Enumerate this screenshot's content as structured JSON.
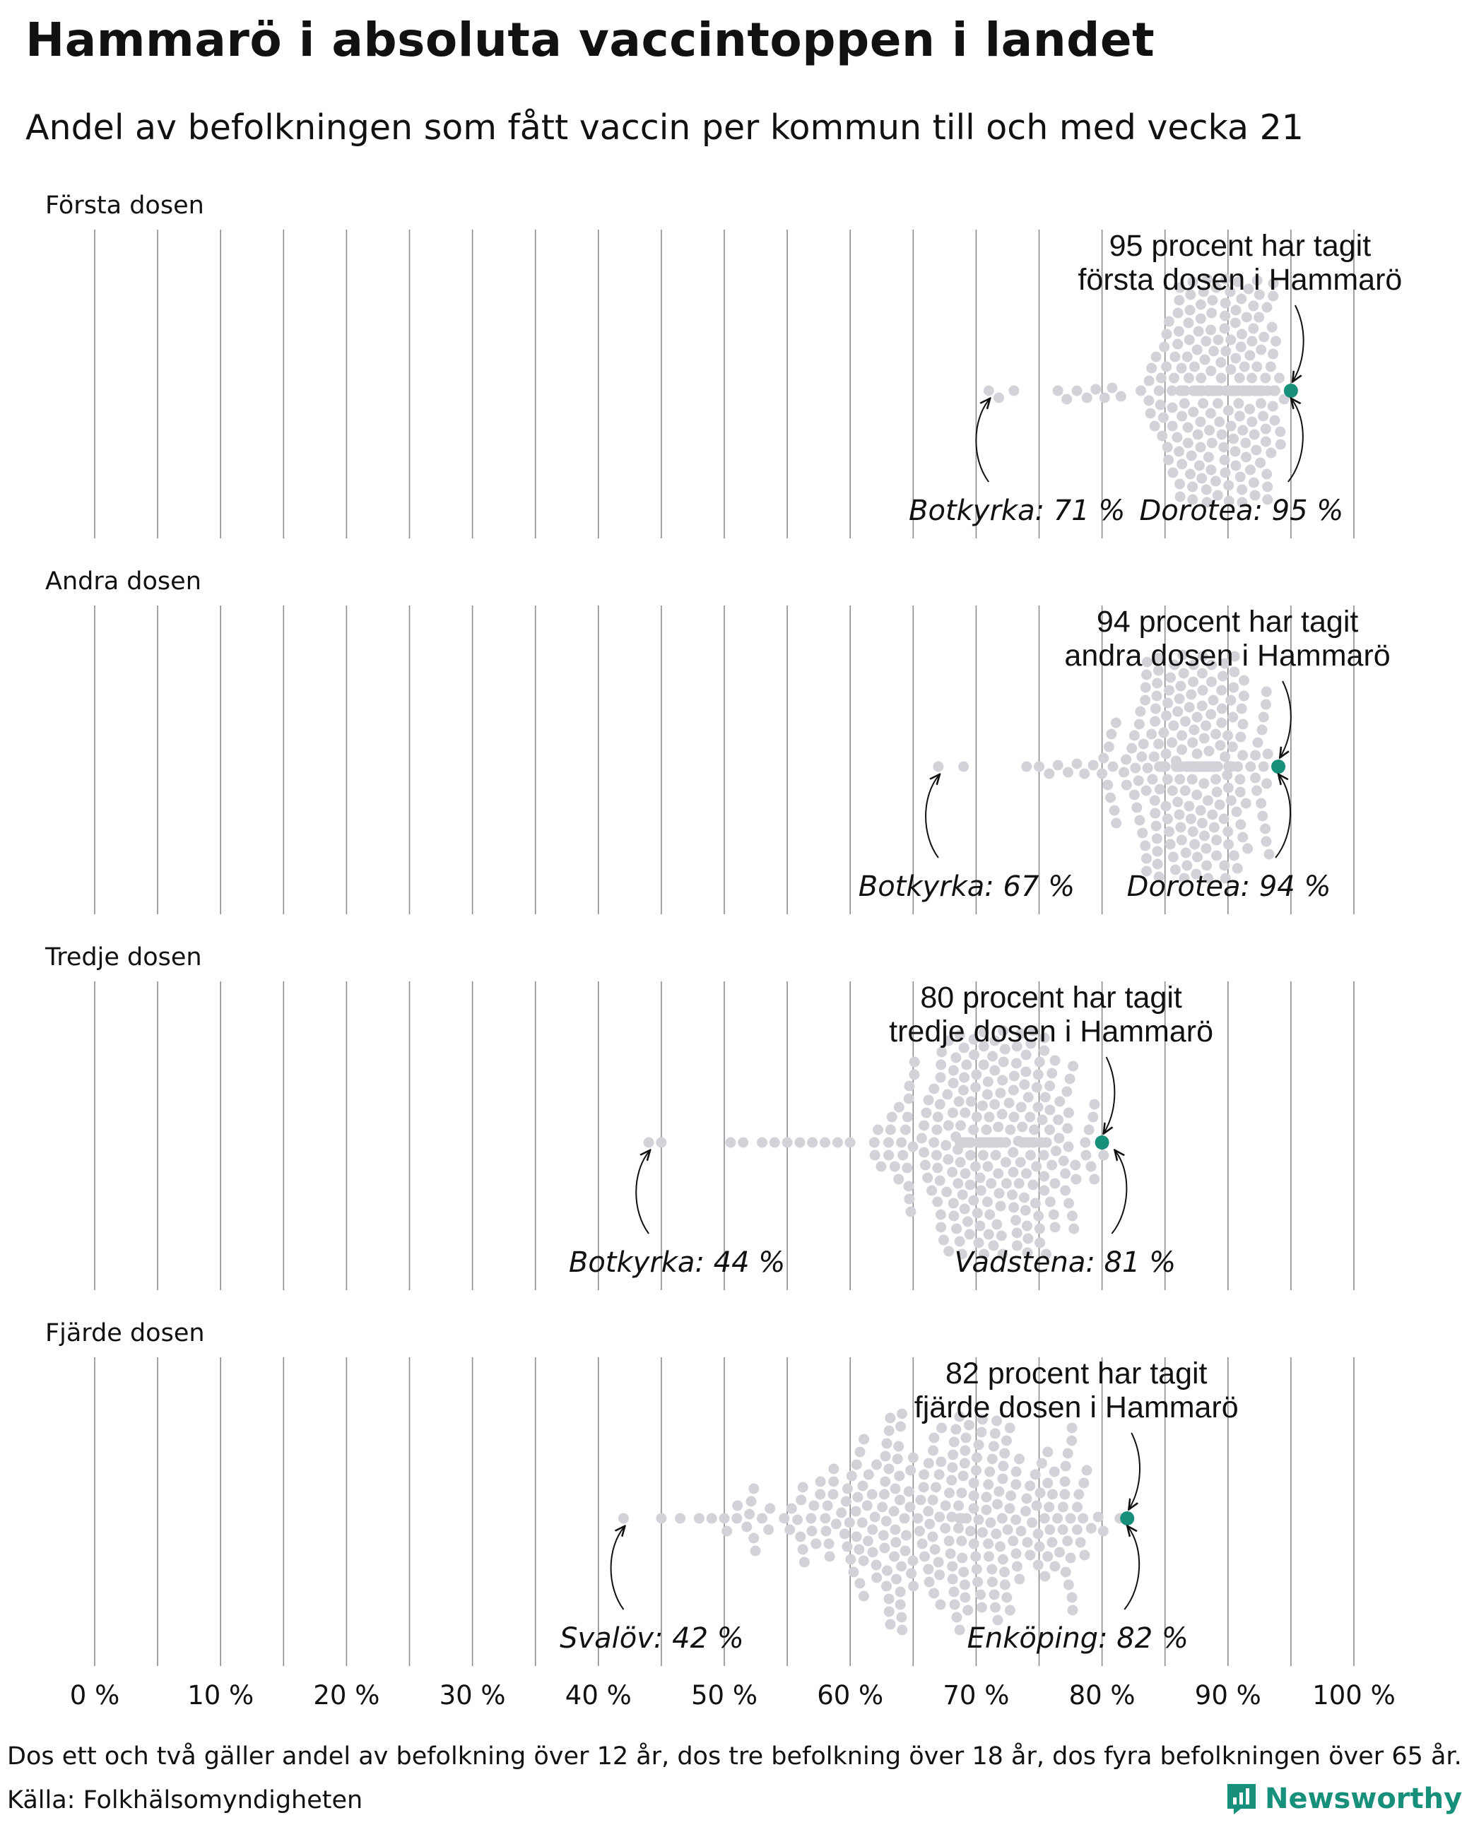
{
  "title": "Hammarö i absoluta vaccintoppen i landet",
  "subtitle": "Andel av befolkningen som fått vaccin per kommun till och med vecka 21",
  "footnote": "Dos ett och två gäller andel av befolkning över 12 år, dos tre befolkning över 18 år, dos fyra befolkningen över 65 år.",
  "source": "Källa: Folkhälsomyndigheten",
  "logo": {
    "text": "Newsworthy",
    "icon": "newsworthy-logo-icon"
  },
  "colors": {
    "highlight": "#168f7b",
    "dot": "#d3d2d8",
    "grid": "#8c8c8c",
    "text": "#111111"
  },
  "chart_data": {
    "type": "scatter",
    "subtype": "beeswarm",
    "xlim": [
      0,
      100
    ],
    "x_ticks": [
      0,
      10,
      20,
      30,
      40,
      50,
      60,
      70,
      80,
      90,
      100
    ],
    "x_tick_labels": [
      "0 %",
      "10 %",
      "20 %",
      "30 %",
      "40 %",
      "50 %",
      "60 %",
      "70 %",
      "80 %",
      "90 %",
      "100 %"
    ],
    "gridlines_every": 5,
    "panels": [
      {
        "label": "Första dosen",
        "highlight": {
          "name": "Hammarö",
          "value": 95,
          "label_line1": "95 procent har tagit",
          "label_line2": "första dosen i Hammarö"
        },
        "min_label": {
          "text": "Botkyrka: 71 %",
          "value": 71
        },
        "max_label": {
          "text": "Dorotea: 95 %",
          "value": 95
        },
        "distribution": {
          "mean": 89.5,
          "sd": 2.8,
          "min": 71,
          "max": 95,
          "count": 290,
          "outliers": [
            71,
            71.8,
            73,
            76.5,
            77.2,
            78,
            78.8,
            79.5,
            80.2,
            80.8,
            81.5
          ]
        }
      },
      {
        "label": "Andra dosen",
        "highlight": {
          "name": "Hammarö",
          "value": 94,
          "label_line1": "94 procent har tagit",
          "label_line2": "andra dosen i Hammarö"
        },
        "min_label": {
          "text": "Botkyrka: 67 %",
          "value": 67
        },
        "max_label": {
          "text": "Dorotea: 94 %",
          "value": 94
        },
        "distribution": {
          "mean": 87.5,
          "sd": 3.2,
          "min": 67,
          "max": 94,
          "count": 290,
          "outliers": [
            67,
            69,
            74,
            75,
            75.8,
            76.5,
            77.3,
            78,
            78.6,
            79.3,
            80
          ]
        }
      },
      {
        "label": "Tredje dosen",
        "highlight": {
          "name": "Hammarö",
          "value": 80,
          "label_line1": "80 procent har tagit",
          "label_line2": "tredje dosen i Hammarö"
        },
        "min_label": {
          "text": "Botkyrka: 44 %",
          "value": 44
        },
        "max_label": {
          "text": "Vadstena: 81 %",
          "value": 81
        },
        "distribution": {
          "mean": 71,
          "sd": 4.3,
          "min": 44,
          "max": 81,
          "count": 290,
          "outliers": [
            44,
            45,
            50.5,
            51.5,
            53,
            54,
            55,
            56,
            57,
            58,
            59
          ]
        }
      },
      {
        "label": "Fjärde dosen",
        "highlight": {
          "name": "Hammarö",
          "value": 82,
          "label_line1": "82 procent har tagit",
          "label_line2": "fjärde dosen i Hammarö"
        },
        "min_label": {
          "text": "Svalöv: 42 %",
          "value": 42
        },
        "max_label": {
          "text": "Enköping: 82 %",
          "value": 82
        },
        "distribution": {
          "mean": 68,
          "sd": 7,
          "min": 42,
          "max": 82,
          "count": 290,
          "outliers": [
            42,
            45,
            46.5,
            48,
            49,
            50,
            51,
            52,
            53
          ]
        }
      }
    ]
  }
}
